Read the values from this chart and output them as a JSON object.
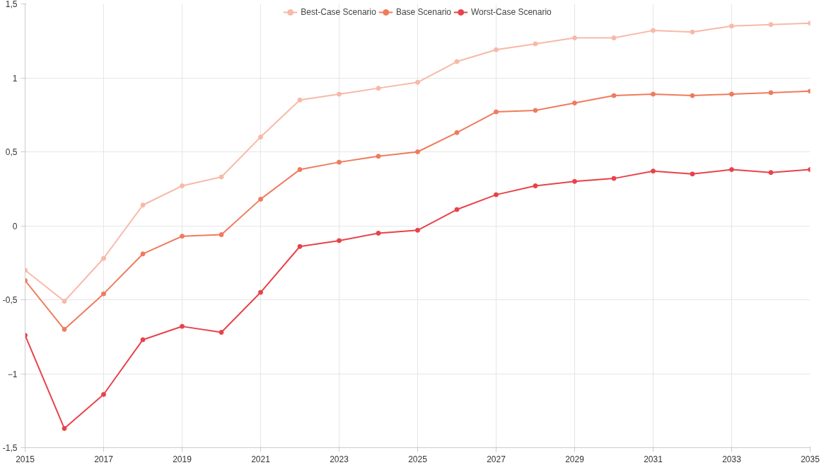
{
  "chart_data": {
    "type": "line",
    "x": [
      2015,
      2016,
      2017,
      2018,
      2019,
      2020,
      2021,
      2022,
      2023,
      2024,
      2025,
      2026,
      2027,
      2028,
      2029,
      2030,
      2031,
      2032,
      2033,
      2034,
      2035
    ],
    "series": [
      {
        "name": "Best-Case Scenario",
        "color": "#f7b9a8",
        "values": [
          -0.3,
          -0.51,
          -0.22,
          0.14,
          0.27,
          0.33,
          0.6,
          0.85,
          0.89,
          0.93,
          0.97,
          1.11,
          1.19,
          1.23,
          1.27,
          1.27,
          1.32,
          1.31,
          1.35,
          1.36,
          1.37
        ]
      },
      {
        "name": "Base Scenario",
        "color": "#ef7b5e",
        "values": [
          -0.37,
          -0.7,
          -0.46,
          -0.19,
          -0.07,
          -0.06,
          0.18,
          0.38,
          0.43,
          0.47,
          0.5,
          0.63,
          0.77,
          0.78,
          0.83,
          0.88,
          0.89,
          0.88,
          0.89,
          0.9,
          0.91
        ]
      },
      {
        "name": "Worst-Case Scenario",
        "color": "#e8434a",
        "values": [
          -0.74,
          -1.37,
          -1.14,
          -0.77,
          -0.68,
          -0.72,
          -0.45,
          -0.14,
          -0.1,
          -0.05,
          -0.03,
          0.11,
          0.21,
          0.27,
          0.3,
          0.32,
          0.37,
          0.35,
          0.38,
          0.36,
          0.38
        ]
      }
    ],
    "xlim": [
      2015,
      2035
    ],
    "xticks": [
      2015,
      2017,
      2019,
      2021,
      2023,
      2025,
      2027,
      2029,
      2031,
      2033,
      2035
    ],
    "ylim": [
      -1.5,
      1.5
    ],
    "yticks": [
      {
        "value": -1.5,
        "label": "-1,5"
      },
      -1,
      {
        "value": -0.5,
        "label": "-0,5"
      },
      0,
      {
        "value": 0.5,
        "label": "0,5"
      },
      1,
      {
        "value": 1.5,
        "label": "1,5"
      }
    ],
    "grid": true,
    "legend": "top",
    "marker": "circle",
    "line_style": "solid"
  }
}
